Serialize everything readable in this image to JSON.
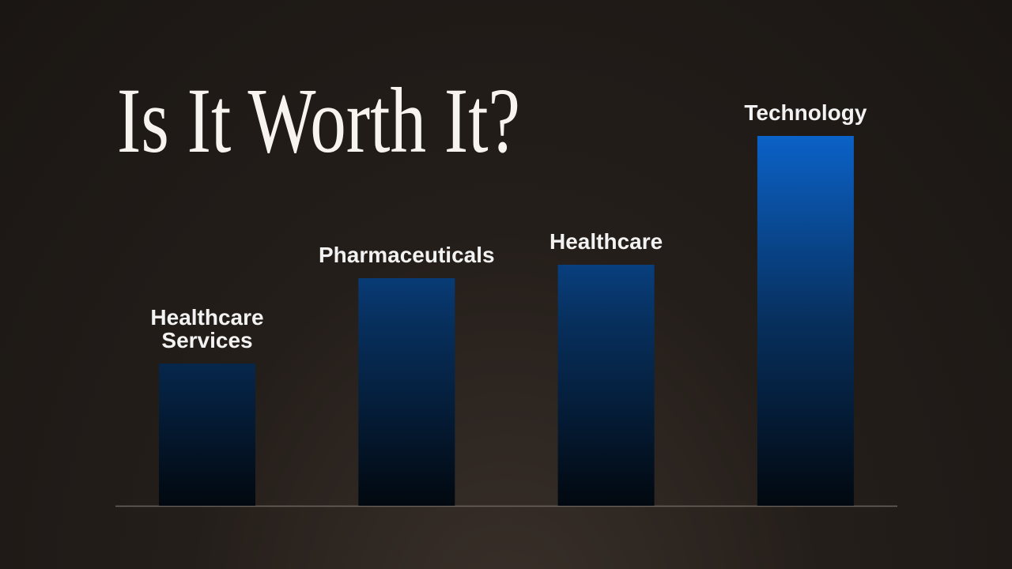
{
  "chart_data": {
    "type": "bar",
    "title": "Is It Worth It?",
    "categories": [
      "Healthcare Services",
      "Pharmaceuticals",
      "Healthcare",
      "Technology"
    ],
    "values": [
      180,
      288,
      305,
      468
    ]
  }
}
